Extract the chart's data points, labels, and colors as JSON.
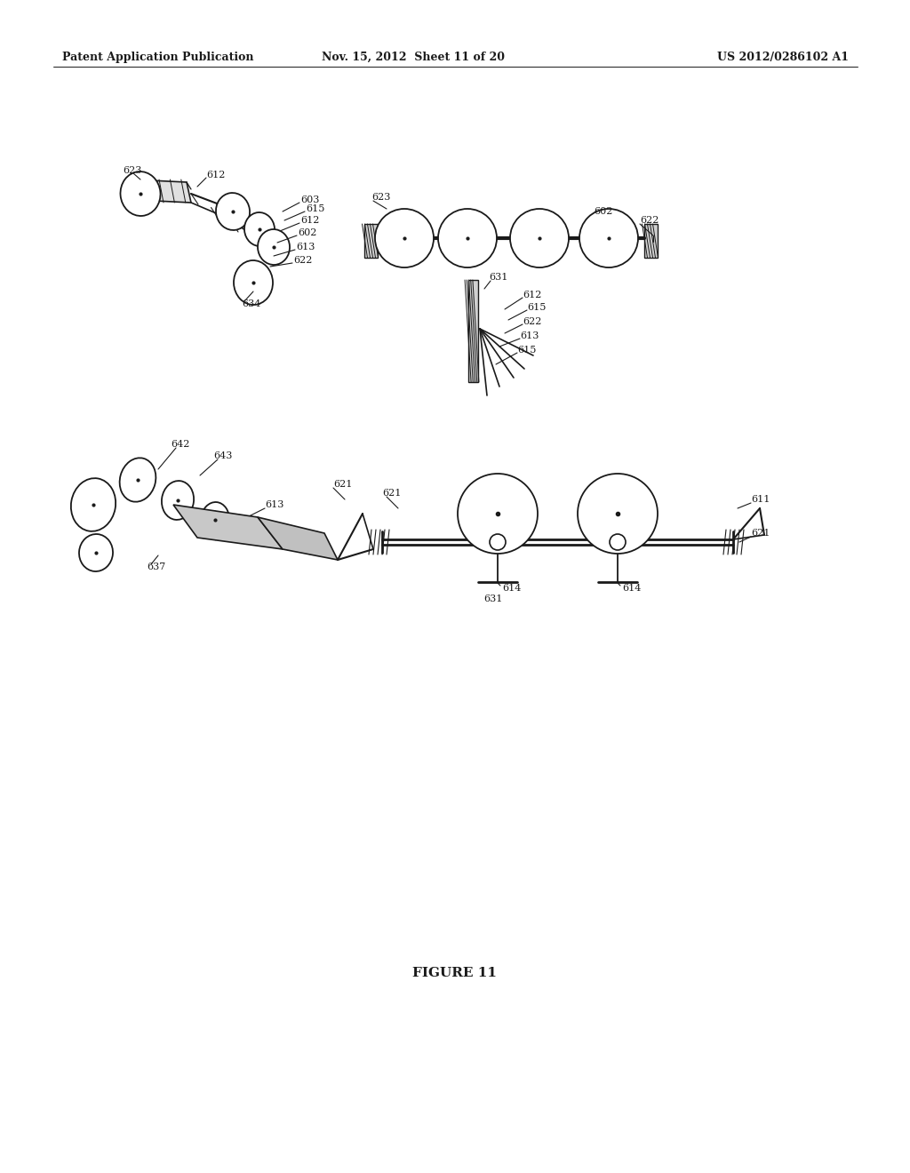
{
  "background_color": "#ffffff",
  "header_left": "Patent Application Publication",
  "header_center": "Nov. 15, 2012  Sheet 11 of 20",
  "header_right": "US 2012/0286102 A1",
  "figure_label": "FIGURE 11",
  "header_fontsize": 9,
  "figure_label_fontsize": 11,
  "label_fontsize": 7.5,
  "sketch_color": "#1a1a1a",
  "page_bg": "#f5f4f0"
}
